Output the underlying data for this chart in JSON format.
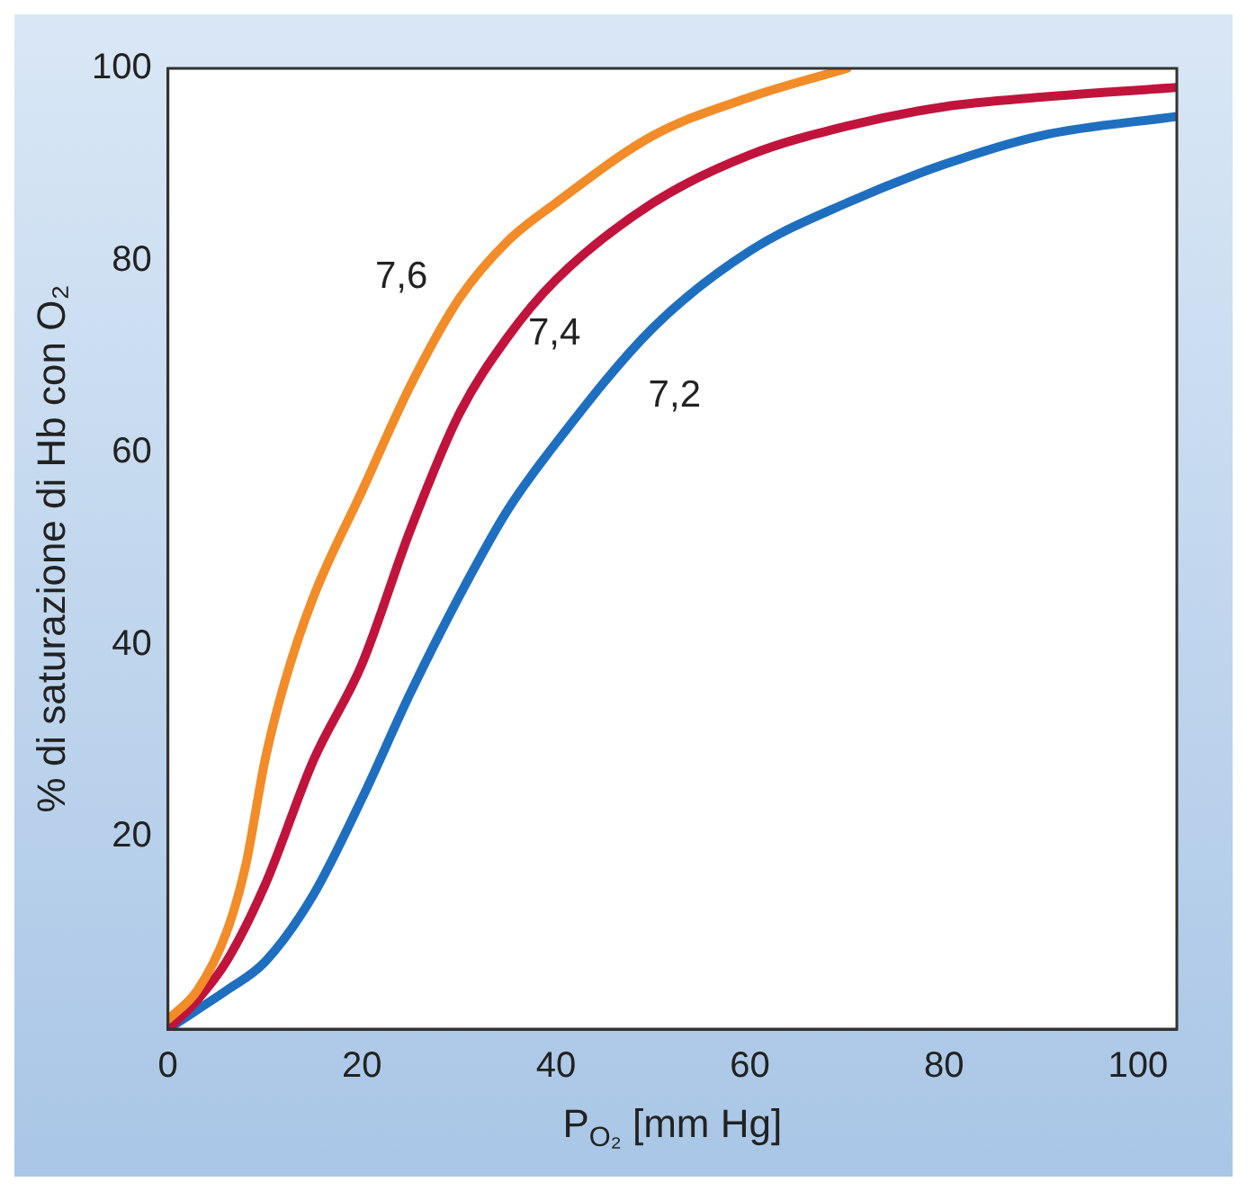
{
  "chart_data": {
    "type": "line",
    "xlabel": "P$_{O₂}$ [mm Hg]",
    "ylabel": "% di saturazione di Hb con O₂",
    "series": [
      {
        "color": "#f28c28",
        "x": [
          0,
          3,
          6,
          8,
          10,
          12,
          15,
          20,
          25,
          30,
          35,
          40,
          50,
          60,
          70
        ],
        "values": [
          1,
          4,
          10,
          17,
          28,
          36,
          45,
          56,
          67,
          76,
          82,
          86,
          93,
          97,
          100
        ]
      },
      {
        "color": "#c0143c",
        "x": [
          0,
          3,
          6,
          10,
          15,
          20,
          25,
          30,
          35,
          40,
          50,
          60,
          70,
          80,
          90,
          104
        ],
        "values": [
          0,
          3,
          7,
          15,
          28,
          38,
          52,
          64,
          72,
          78,
          86,
          91,
          94,
          96,
          97,
          98
        ]
      },
      {
        "color": "#1f6fc1",
        "x": [
          0,
          3,
          6,
          10,
          15,
          20,
          25,
          30,
          35,
          40,
          50,
          60,
          70,
          80,
          90,
          104
        ],
        "values": [
          0,
          2,
          4,
          7,
          14,
          24,
          35,
          45,
          54,
          61,
          73,
          81,
          86,
          90,
          93,
          95
        ]
      }
    ],
    "annotations": [
      {
        "text": "7,6",
        "x": 30,
        "y": 76
      },
      {
        "text": "7,4",
        "x": 35,
        "y": 72
      },
      {
        "text": "7,2",
        "x": 50,
        "y": 73
      }
    ],
    "xlim": [
      0,
      104
    ],
    "ylim": [
      0,
      100
    ],
    "xticks": [
      0,
      20,
      40,
      60,
      80,
      100
    ],
    "yticks": [
      20,
      40,
      60,
      80,
      100
    ],
    "grid": false,
    "legend": false,
    "marker": "none",
    "line_style": "solid"
  }
}
